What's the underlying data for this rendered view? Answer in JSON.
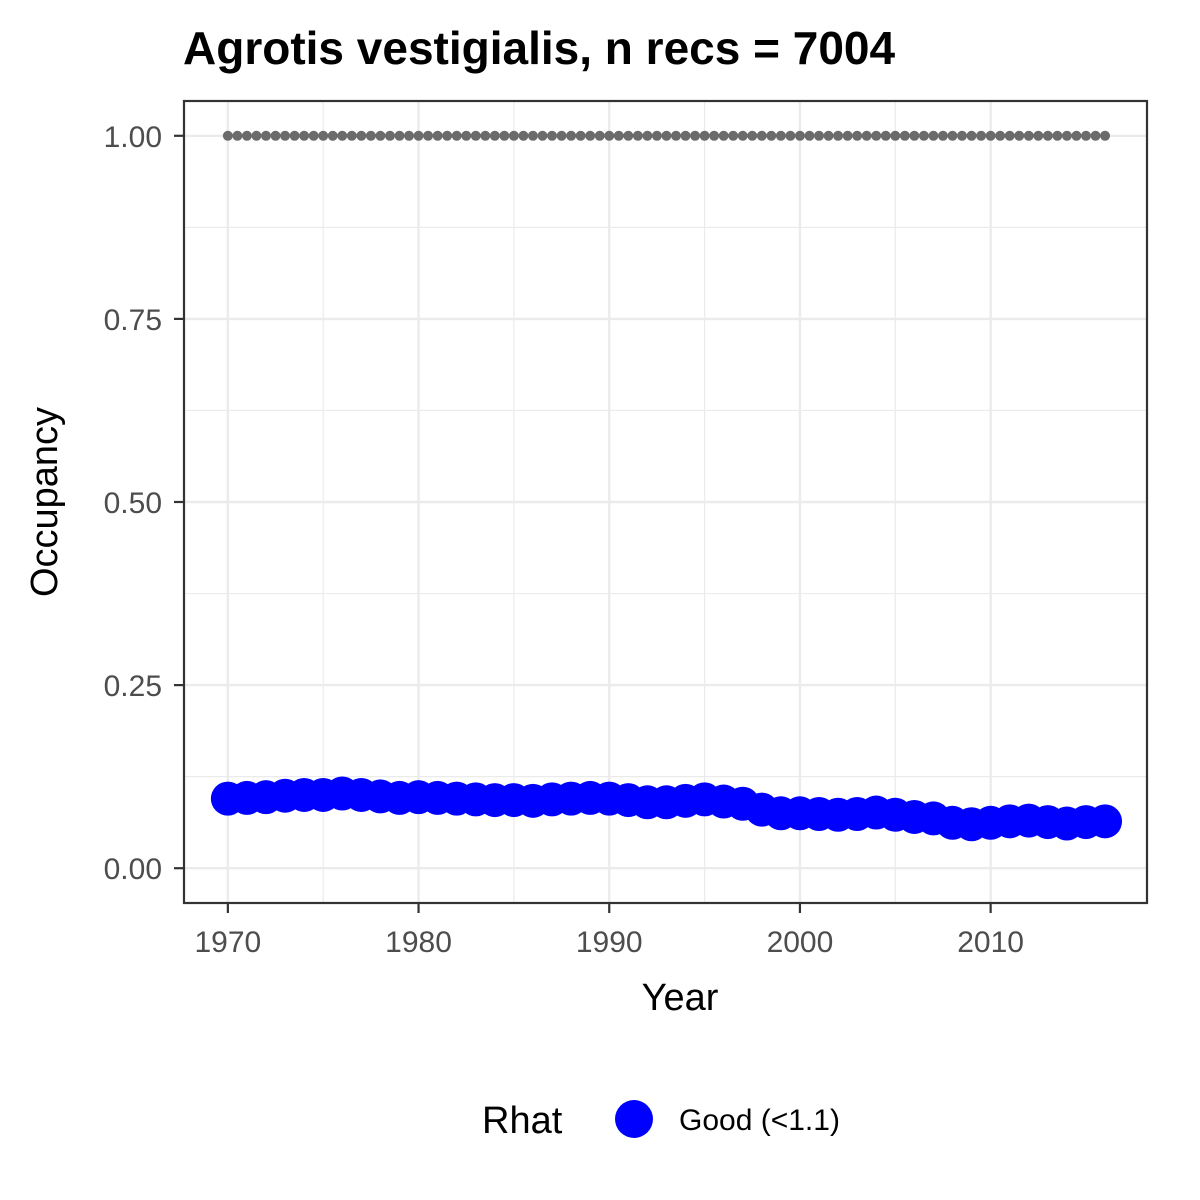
{
  "chart_data": {
    "type": "scatter",
    "title": "Agrotis vestigialis, n recs = 7004",
    "xlabel": "Year",
    "ylabel": "Occupancy",
    "xlim": [
      1967.7,
      2018.2
    ],
    "ylim": [
      -0.0475,
      1.0475
    ],
    "x_ticks": [
      1970,
      1980,
      1990,
      2000,
      2010
    ],
    "x_tick_labels": [
      "1970",
      "1980",
      "1990",
      "2000",
      "2010"
    ],
    "y_ticks": [
      0,
      0.25,
      0.5,
      0.75,
      1.0
    ],
    "y_tick_labels": [
      "0.00",
      "0.25",
      "0.50",
      "0.75",
      "1.00"
    ],
    "grid": true,
    "legend": {
      "title": "Rhat",
      "placement": "bottom",
      "entries": [
        {
          "label": "Good (<1.1)",
          "color": "#0000ff"
        }
      ]
    },
    "reference_series": {
      "color": "#6b6b6b",
      "x": [
        1970,
        1971,
        1972,
        1973,
        1974,
        1975,
        1976,
        1977,
        1978,
        1979,
        1980,
        1981,
        1982,
        1983,
        1984,
        1985,
        1986,
        1987,
        1988,
        1989,
        1990,
        1991,
        1992,
        1993,
        1994,
        1995,
        1996,
        1997,
        1998,
        1999,
        2000,
        2001,
        2002,
        2003,
        2004,
        2005,
        2006,
        2007,
        2008,
        2009,
        2010,
        2011,
        2012,
        2013,
        2014,
        2015,
        2016
      ],
      "values": [
        1,
        1,
        1,
        1,
        1,
        1,
        1,
        1,
        1,
        1,
        1,
        1,
        1,
        1,
        1,
        1,
        1,
        1,
        1,
        1,
        1,
        1,
        1,
        1,
        1,
        1,
        1,
        1,
        1,
        1,
        1,
        1,
        1,
        1,
        1,
        1,
        1,
        1,
        1,
        1,
        1,
        1,
        1,
        1,
        1,
        1,
        1
      ]
    },
    "series": [
      {
        "name": "Good (<1.1)",
        "color": "#0000ff",
        "x": [
          1970,
          1971,
          1972,
          1973,
          1974,
          1975,
          1976,
          1977,
          1978,
          1979,
          1980,
          1981,
          1982,
          1983,
          1984,
          1985,
          1986,
          1987,
          1988,
          1989,
          1990,
          1991,
          1992,
          1993,
          1994,
          1995,
          1996,
          1997,
          1998,
          1999,
          2000,
          2001,
          2002,
          2003,
          2004,
          2005,
          2006,
          2007,
          2008,
          2009,
          2010,
          2011,
          2012,
          2013,
          2014,
          2015,
          2016
        ],
        "values": [
          0.095,
          0.096,
          0.097,
          0.099,
          0.1,
          0.1,
          0.102,
          0.1,
          0.098,
          0.096,
          0.097,
          0.096,
          0.095,
          0.094,
          0.093,
          0.093,
          0.092,
          0.094,
          0.095,
          0.096,
          0.095,
          0.093,
          0.09,
          0.09,
          0.092,
          0.094,
          0.091,
          0.088,
          0.08,
          0.075,
          0.075,
          0.074,
          0.073,
          0.074,
          0.076,
          0.073,
          0.07,
          0.068,
          0.062,
          0.06,
          0.062,
          0.064,
          0.065,
          0.063,
          0.061,
          0.063,
          0.064
        ]
      }
    ]
  }
}
